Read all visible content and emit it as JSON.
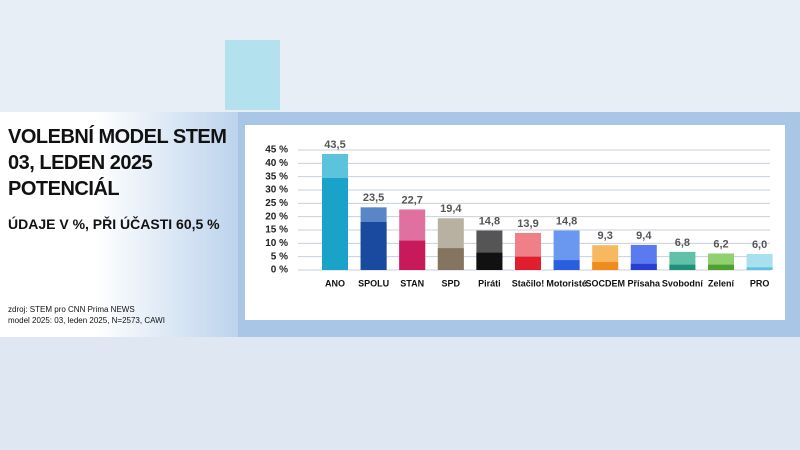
{
  "chart_data": {
    "type": "bar",
    "title": "VOLEBNÍ MODEL STEM 03, LEDEN 2025 POTENCIÁL",
    "subtitle": "ÚDAJE V %, PŘI ÚČASTI 60,5 %",
    "source": [
      "zdroj: STEM pro CNN Prima NEWS",
      "model 2025: 03, leden 2025, N=2573, CAWI"
    ],
    "categories": [
      "ANO",
      "SPOLU",
      "STAN",
      "SPD",
      "Piráti",
      "Stačilo!",
      "Motoristé",
      "SOCDEM",
      "Přísaha",
      "Svobodní",
      "Zelení",
      "PRO"
    ],
    "values": [
      43.5,
      23.5,
      22.7,
      19.4,
      14.8,
      13.9,
      14.8,
      9.3,
      9.4,
      6.8,
      6.2,
      6.0
    ],
    "value_labels": [
      "43,5",
      "23,5",
      "22,7",
      "19,4",
      "14,8",
      "13,9",
      "14,8",
      "9,3",
      "9,4",
      "6,8",
      "6,2",
      "6,0"
    ],
    "core_values": [
      34.5,
      18,
      11,
      8.2,
      6.5,
      5,
      3.7,
      3,
      2.3,
      2,
      2,
      1
    ],
    "colors": [
      "#1aa3c8",
      "#1a4aa0",
      "#c8195a",
      "#857560",
      "#111111",
      "#e01e2e",
      "#2a5ee0",
      "#f08c1e",
      "#2840d0",
      "#20907a",
      "#50a030",
      "#60c0e0"
    ],
    "light_colors": [
      "#5bc4dc",
      "#5a86c8",
      "#e070a0",
      "#b8b0a0",
      "#555555",
      "#f08088",
      "#6a98f0",
      "#f8b860",
      "#5a7af0",
      "#60c0a8",
      "#90d070",
      "#a8e0f0"
    ],
    "ylim": [
      0,
      45
    ],
    "yticks": [
      {
        "value": 0,
        "label": "0 %"
      },
      {
        "value": 5,
        "label": "5 %"
      },
      {
        "value": 10,
        "label": "10 %"
      },
      {
        "value": 15,
        "label": "15 %"
      },
      {
        "value": 20,
        "label": "20 %"
      },
      {
        "value": 25,
        "label": "25 %"
      },
      {
        "value": 30,
        "label": "30 %"
      },
      {
        "value": 35,
        "label": "35 %"
      },
      {
        "value": 40,
        "label": "40 %"
      },
      {
        "value": 45,
        "label": "45 %"
      }
    ],
    "grid": true
  }
}
